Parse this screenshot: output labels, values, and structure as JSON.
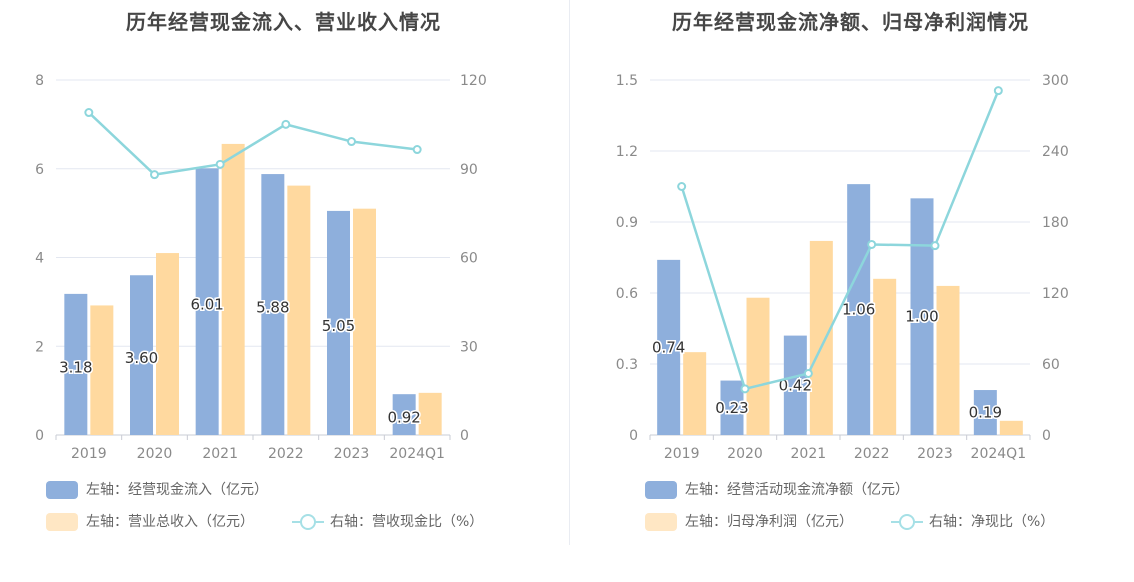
{
  "chart_data": [
    {
      "type": "bar",
      "title": "历年经营现金流入、营业收入情况",
      "categories": [
        "2019",
        "2020",
        "2021",
        "2022",
        "2023",
        "2024Q1"
      ],
      "y_left": {
        "range": [
          0,
          8
        ],
        "ticks": [
          "0",
          "2",
          "4",
          "6",
          "8"
        ]
      },
      "y_right": {
        "range": [
          0,
          120
        ],
        "ticks": [
          "0",
          "30",
          "60",
          "90",
          "120"
        ]
      },
      "series": [
        {
          "name": "左轴：经营现金流入（亿元）",
          "type": "bar",
          "axis": "left",
          "color": "#8eafdc",
          "values": [
            3.18,
            3.6,
            6.01,
            5.88,
            5.05,
            0.92
          ],
          "labels": [
            "3.18",
            "3.60",
            "6.01",
            "5.88",
            "5.05",
            "0.92"
          ]
        },
        {
          "name": "左轴：营业总收入（亿元）",
          "type": "bar",
          "axis": "left",
          "color": "#ffd99f",
          "values": [
            2.92,
            4.1,
            6.56,
            5.62,
            5.1,
            0.95
          ]
        },
        {
          "name": "右轴：营收现金比（%）",
          "type": "line",
          "axis": "right",
          "color": "#8dd6dc",
          "values": [
            109,
            88,
            91.5,
            105,
            99.2,
            96.5
          ]
        }
      ],
      "legend_position": "bottom",
      "grid": true
    },
    {
      "type": "bar",
      "title": "历年经营现金流净额、归母净利润情况",
      "categories": [
        "2019",
        "2020",
        "2021",
        "2022",
        "2023",
        "2024Q1"
      ],
      "y_left": {
        "range": [
          0,
          1.5
        ],
        "ticks": [
          "0",
          "0.3",
          "0.6",
          "0.9",
          "1.2",
          "1.5"
        ]
      },
      "y_right": {
        "range": [
          0,
          300
        ],
        "ticks": [
          "0",
          "60",
          "120",
          "180",
          "240",
          "300"
        ]
      },
      "series": [
        {
          "name": "左轴：经营活动现金流净额（亿元）",
          "type": "bar",
          "axis": "left",
          "color": "#8eafdc",
          "values": [
            0.74,
            0.23,
            0.42,
            1.06,
            1.0,
            0.19
          ],
          "labels": [
            "0.74",
            "0.23",
            "0.42",
            "1.06",
            "1.00",
            "0.19"
          ]
        },
        {
          "name": "左轴：归母净利润（亿元）",
          "type": "bar",
          "axis": "left",
          "color": "#ffd99f",
          "values": [
            0.35,
            0.58,
            0.82,
            0.66,
            0.63,
            0.06
          ]
        },
        {
          "name": "右轴：净现比（%）",
          "type": "line",
          "axis": "right",
          "color": "#8dd6dc",
          "values": [
            210,
            39,
            52,
            161,
            160,
            291
          ]
        }
      ],
      "legend_position": "bottom",
      "grid": true
    }
  ]
}
